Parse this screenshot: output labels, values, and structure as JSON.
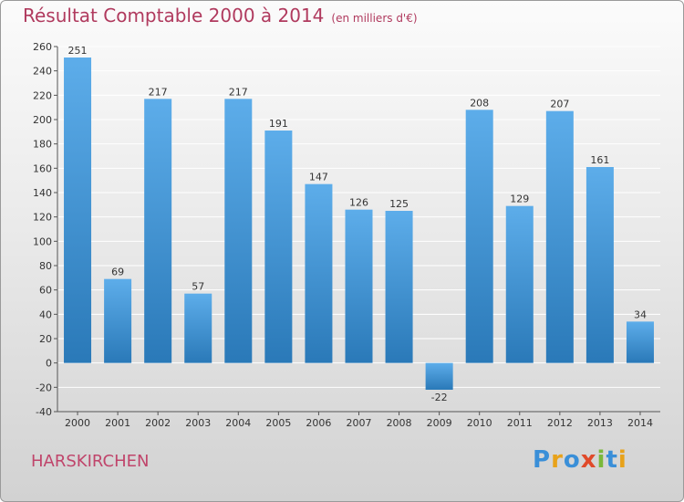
{
  "header": {
    "title": "Résultat Comptable 2000 à 2014",
    "unit": "(en milliers d'€)"
  },
  "footer": {
    "commune": "HARSKIRCHEN",
    "logo": "Proxiti"
  },
  "colors": {
    "bar_top": "#5dadea",
    "bar_bottom": "#2a79b8",
    "title": "#b03a5e",
    "commune": "#c0456b",
    "grid": "#ffffff"
  },
  "chart_data": {
    "type": "bar",
    "title": "Résultat Comptable 2000 à 2014",
    "subtitle": "(en milliers d'€)",
    "xlabel": "",
    "ylabel": "",
    "categories": [
      "2000",
      "2001",
      "2002",
      "2003",
      "2004",
      "2005",
      "2006",
      "2007",
      "2008",
      "2009",
      "2010",
      "2011",
      "2012",
      "2013",
      "2014"
    ],
    "values": [
      251,
      69,
      217,
      57,
      217,
      191,
      147,
      126,
      125,
      -22,
      208,
      129,
      207,
      161,
      34
    ],
    "ylim": [
      -40,
      260
    ],
    "yticks": [
      -40,
      -20,
      0,
      20,
      40,
      60,
      80,
      100,
      120,
      140,
      160,
      180,
      200,
      220,
      240,
      260
    ],
    "grid": true,
    "legend": "none"
  }
}
